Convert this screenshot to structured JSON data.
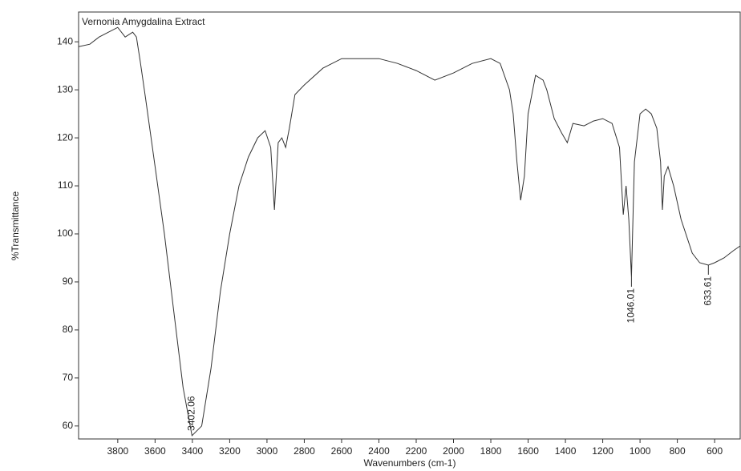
{
  "chart_data": {
    "type": "line",
    "title": "Vernonia Amygdalina Extract",
    "x_label": "Wavenumbers (cm-1)",
    "y_label": "%Transmittance",
    "xlim": [
      4010,
      463
    ],
    "ylim": [
      57.3,
      146.2
    ],
    "xticks": [
      3800,
      3600,
      3400,
      3200,
      3000,
      2800,
      2600,
      2400,
      2200,
      2000,
      1800,
      1600,
      1400,
      1200,
      1000,
      800,
      600
    ],
    "yticks": [
      60,
      70,
      80,
      90,
      100,
      110,
      120,
      130,
      140
    ],
    "color": "#333333",
    "x": [
      4010,
      3950,
      3900,
      3850,
      3800,
      3760,
      3720,
      3700,
      3680,
      3650,
      3600,
      3550,
      3500,
      3450,
      3402.06,
      3350,
      3300,
      3250,
      3200,
      3150,
      3100,
      3050,
      3010,
      2980,
      2960,
      2940,
      2920,
      2900,
      2880,
      2850,
      2800,
      2700,
      2600,
      2500,
      2400,
      2300,
      2200,
      2100,
      2000,
      1900,
      1800,
      1750,
      1700,
      1680,
      1660,
      1640,
      1620,
      1600,
      1560,
      1520,
      1500,
      1460,
      1420,
      1390,
      1360,
      1300,
      1250,
      1200,
      1150,
      1110,
      1090,
      1075,
      1060,
      1046.01,
      1030,
      1000,
      970,
      940,
      910,
      890,
      880,
      870,
      850,
      820,
      780,
      720,
      680,
      633.61,
      600,
      550,
      500,
      463
    ],
    "values": [
      139,
      139.5,
      141,
      142,
      143,
      141,
      142,
      141,
      136,
      128,
      114,
      100,
      84,
      68,
      58,
      60,
      72,
      88,
      100,
      110,
      116,
      120,
      121.5,
      118,
      105,
      119,
      120,
      118,
      122,
      129,
      131,
      134.5,
      136.5,
      136.5,
      136.5,
      135.5,
      134,
      132,
      133.5,
      135.5,
      136.5,
      135.5,
      130,
      125,
      115,
      107,
      112,
      125,
      133,
      132,
      130,
      124,
      121,
      119,
      123,
      122.5,
      123.5,
      124,
      123,
      118,
      104,
      110,
      103,
      91,
      115,
      125,
      126,
      125,
      122,
      115,
      105,
      112,
      114,
      110,
      103,
      96,
      94,
      93.5,
      94,
      95,
      96.5,
      97.5
    ],
    "annotations": [
      "3402.06",
      "1046.01",
      "633.61"
    ]
  }
}
